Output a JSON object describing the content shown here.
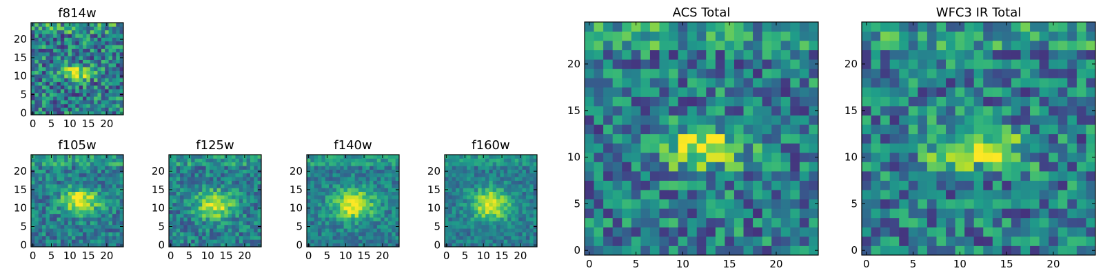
{
  "chart_data": [
    {
      "type": "heatmap",
      "title": "f814w",
      "grid_size": 25,
      "xlim": [
        0,
        24
      ],
      "ylim": [
        0,
        24
      ],
      "xticks": [
        "0",
        "5",
        "10",
        "15",
        "20"
      ],
      "yticks": [
        "0",
        "5",
        "10",
        "15",
        "20"
      ],
      "colormap": "viridis",
      "source_center": [
        12,
        11
      ],
      "source_extent": [
        3.2,
        1.2
      ],
      "noise": 0.3,
      "seed": 7
    },
    {
      "type": "heatmap",
      "title": "f105w",
      "grid_size": 25,
      "xlim": [
        0,
        24
      ],
      "ylim": [
        0,
        24
      ],
      "xticks": [
        "0",
        "5",
        "10",
        "15",
        "20"
      ],
      "yticks": [
        "0",
        "5",
        "10",
        "15",
        "20"
      ],
      "colormap": "viridis",
      "source_center": [
        13,
        12
      ],
      "source_extent": [
        3.5,
        2.4
      ],
      "noise": 0.2,
      "seed": 11
    },
    {
      "type": "heatmap",
      "title": "f125w",
      "grid_size": 25,
      "xlim": [
        0,
        24
      ],
      "ylim": [
        0,
        24
      ],
      "xticks": [
        "0",
        "5",
        "10",
        "15",
        "20"
      ],
      "yticks": [
        "0",
        "5",
        "10",
        "15",
        "20"
      ],
      "colormap": "viridis",
      "source_center": [
        12,
        11
      ],
      "source_extent": [
        3.5,
        2.6
      ],
      "noise": 0.2,
      "seed": 13
    },
    {
      "type": "heatmap",
      "title": "f140w",
      "grid_size": 25,
      "xlim": [
        0,
        24
      ],
      "ylim": [
        0,
        24
      ],
      "xticks": [
        "0",
        "5",
        "10",
        "15",
        "20"
      ],
      "yticks": [
        "0",
        "5",
        "10",
        "15",
        "20"
      ],
      "colormap": "viridis",
      "source_center": [
        12,
        11
      ],
      "source_extent": [
        4,
        3
      ],
      "noise": 0.16,
      "seed": 17
    },
    {
      "type": "heatmap",
      "title": "f160w",
      "grid_size": 25,
      "xlim": [
        0,
        24
      ],
      "ylim": [
        0,
        24
      ],
      "xticks": [
        "0",
        "5",
        "10",
        "15",
        "20"
      ],
      "yticks": [
        "0",
        "5",
        "10",
        "15",
        "20"
      ],
      "colormap": "viridis",
      "source_center": [
        12,
        11
      ],
      "source_extent": [
        3.5,
        3
      ],
      "noise": 0.15,
      "seed": 19
    },
    {
      "type": "heatmap",
      "title": "ACS Total",
      "grid_size": 25,
      "xlim": [
        0,
        24
      ],
      "ylim": [
        0,
        24
      ],
      "xticks": [
        "0",
        "5",
        "10",
        "15",
        "20"
      ],
      "yticks": [
        "0",
        "5",
        "10",
        "15",
        "20"
      ],
      "colormap": "viridis",
      "source_center": [
        12,
        11
      ],
      "source_extent": [
        3,
        1.5
      ],
      "noise": 0.28,
      "seed": 23
    },
    {
      "type": "heatmap",
      "title": "WFC3 IR Total",
      "grid_size": 25,
      "xlim": [
        0,
        24
      ],
      "ylim": [
        0,
        24
      ],
      "xticks": [
        "0",
        "5",
        "10",
        "15",
        "20"
      ],
      "yticks": [
        "0",
        "5",
        "10",
        "15",
        "20"
      ],
      "colormap": "viridis",
      "source_center": [
        12,
        11
      ],
      "source_extent": [
        3.5,
        1.5
      ],
      "noise": 0.28,
      "seed": 29
    }
  ]
}
